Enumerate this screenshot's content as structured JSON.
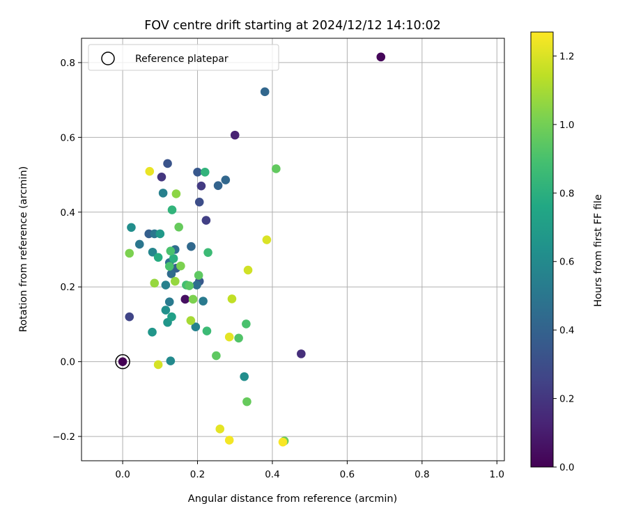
{
  "chart_data": {
    "type": "scatter",
    "title": "FOV centre drift starting at 2024/12/12 14:10:02",
    "xlabel": "Angular distance from reference (arcmin)",
    "ylabel": "Rotation from reference (arcmin)",
    "xlim": [
      -0.11,
      1.02
    ],
    "ylim": [
      -0.265,
      0.865
    ],
    "xticks": [
      0.0,
      0.2,
      0.4,
      0.6,
      0.8,
      1.0
    ],
    "xtick_labels": [
      "0.0",
      "0.2",
      "0.4",
      "0.6",
      "0.8",
      "1.0"
    ],
    "yticks": [
      -0.2,
      0.0,
      0.2,
      0.4,
      0.6,
      0.8
    ],
    "ytick_labels": [
      "−0.2",
      "0.0",
      "0.2",
      "0.4",
      "0.6",
      "0.8"
    ],
    "grid": true,
    "legend": {
      "label": "Reference platepar",
      "position": "top-left"
    },
    "reference_point": {
      "x": 0.0,
      "y": 0.0
    },
    "colorbar": {
      "label": "Hours from first FF file",
      "colormap": "viridis",
      "range": [
        0.0,
        1.27
      ],
      "ticks": [
        0.0,
        0.2,
        0.4,
        0.6,
        0.8,
        1.0,
        1.2
      ],
      "tick_labels": [
        "0.0",
        "0.2",
        "0.4",
        "0.6",
        "0.8",
        "1.0",
        "1.2"
      ]
    },
    "points": [
      {
        "x": 0.0,
        "y": 0.0,
        "c": 0.0
      },
      {
        "x": 0.69,
        "y": 0.815,
        "c": 0.02
      },
      {
        "x": 0.167,
        "y": 0.167,
        "c": 0.05
      },
      {
        "x": 0.3,
        "y": 0.606,
        "c": 0.12
      },
      {
        "x": 0.477,
        "y": 0.021,
        "c": 0.17
      },
      {
        "x": 0.104,
        "y": 0.494,
        "c": 0.2
      },
      {
        "x": 0.21,
        "y": 0.47,
        "c": 0.22
      },
      {
        "x": 0.223,
        "y": 0.378,
        "c": 0.24
      },
      {
        "x": 0.018,
        "y": 0.12,
        "c": 0.26
      },
      {
        "x": 0.205,
        "y": 0.427,
        "c": 0.3
      },
      {
        "x": 0.12,
        "y": 0.53,
        "c": 0.33
      },
      {
        "x": 0.2,
        "y": 0.507,
        "c": 0.35
      },
      {
        "x": 0.205,
        "y": 0.215,
        "c": 0.35
      },
      {
        "x": 0.07,
        "y": 0.342,
        "c": 0.38
      },
      {
        "x": 0.143,
        "y": 0.25,
        "c": 0.38
      },
      {
        "x": 0.255,
        "y": 0.471,
        "c": 0.4
      },
      {
        "x": 0.275,
        "y": 0.486,
        "c": 0.42
      },
      {
        "x": 0.38,
        "y": 0.722,
        "c": 0.42
      },
      {
        "x": 0.183,
        "y": 0.308,
        "c": 0.43
      },
      {
        "x": 0.13,
        "y": 0.235,
        "c": 0.44
      },
      {
        "x": 0.14,
        "y": 0.3,
        "c": 0.45
      },
      {
        "x": 0.125,
        "y": 0.265,
        "c": 0.46
      },
      {
        "x": 0.198,
        "y": 0.205,
        "c": 0.46
      },
      {
        "x": 0.045,
        "y": 0.314,
        "c": 0.5
      },
      {
        "x": 0.085,
        "y": 0.342,
        "c": 0.5
      },
      {
        "x": 0.125,
        "y": 0.16,
        "c": 0.52
      },
      {
        "x": 0.215,
        "y": 0.162,
        "c": 0.52
      },
      {
        "x": 0.108,
        "y": 0.451,
        "c": 0.55
      },
      {
        "x": 0.115,
        "y": 0.205,
        "c": 0.55
      },
      {
        "x": 0.195,
        "y": 0.093,
        "c": 0.56
      },
      {
        "x": 0.08,
        "y": 0.293,
        "c": 0.58
      },
      {
        "x": 0.128,
        "y": 0.002,
        "c": 0.6
      },
      {
        "x": 0.023,
        "y": 0.359,
        "c": 0.62
      },
      {
        "x": 0.325,
        "y": -0.04,
        "c": 0.62
      },
      {
        "x": 0.115,
        "y": 0.138,
        "c": 0.63
      },
      {
        "x": 0.12,
        "y": 0.105,
        "c": 0.66
      },
      {
        "x": 0.079,
        "y": 0.079,
        "c": 0.66
      },
      {
        "x": 0.1,
        "y": 0.342,
        "c": 0.68
      },
      {
        "x": 0.131,
        "y": 0.12,
        "c": 0.72
      },
      {
        "x": 0.095,
        "y": 0.279,
        "c": 0.78
      },
      {
        "x": 0.136,
        "y": 0.276,
        "c": 0.8
      },
      {
        "x": 0.132,
        "y": 0.406,
        "c": 0.82
      },
      {
        "x": 0.22,
        "y": 0.507,
        "c": 0.82
      },
      {
        "x": 0.225,
        "y": 0.082,
        "c": 0.86
      },
      {
        "x": 0.228,
        "y": 0.292,
        "c": 0.86
      },
      {
        "x": 0.17,
        "y": 0.205,
        "c": 0.88
      },
      {
        "x": 0.125,
        "y": 0.255,
        "c": 0.9
      },
      {
        "x": 0.128,
        "y": 0.296,
        "c": 0.9
      },
      {
        "x": 0.33,
        "y": 0.101,
        "c": 0.9
      },
      {
        "x": 0.31,
        "y": 0.063,
        "c": 0.92
      },
      {
        "x": 0.178,
        "y": 0.203,
        "c": 0.94
      },
      {
        "x": 0.203,
        "y": 0.231,
        "c": 0.95
      },
      {
        "x": 0.25,
        "y": 0.016,
        "c": 0.95
      },
      {
        "x": 0.41,
        "y": 0.516,
        "c": 0.96
      },
      {
        "x": 0.15,
        "y": 0.36,
        "c": 0.97
      },
      {
        "x": 0.332,
        "y": -0.107,
        "c": 0.97
      },
      {
        "x": 0.432,
        "y": -0.212,
        "c": 0.98
      },
      {
        "x": 0.018,
        "y": 0.29,
        "c": 1.02
      },
      {
        "x": 0.155,
        "y": 0.256,
        "c": 1.02
      },
      {
        "x": 0.188,
        "y": 0.167,
        "c": 1.02
      },
      {
        "x": 0.143,
        "y": 0.449,
        "c": 1.05
      },
      {
        "x": 0.085,
        "y": 0.21,
        "c": 1.07
      },
      {
        "x": 0.14,
        "y": 0.215,
        "c": 1.07
      },
      {
        "x": 0.182,
        "y": 0.11,
        "c": 1.1
      },
      {
        "x": 0.292,
        "y": 0.168,
        "c": 1.15
      },
      {
        "x": 0.335,
        "y": 0.245,
        "c": 1.18
      },
      {
        "x": 0.095,
        "y": -0.008,
        "c": 1.19
      },
      {
        "x": 0.385,
        "y": 0.326,
        "c": 1.2
      },
      {
        "x": 0.26,
        "y": -0.18,
        "c": 1.22
      },
      {
        "x": 0.285,
        "y": 0.066,
        "c": 1.22
      },
      {
        "x": 0.072,
        "y": 0.509,
        "c": 1.23
      },
      {
        "x": 0.285,
        "y": -0.21,
        "c": 1.25
      },
      {
        "x": 0.428,
        "y": -0.215,
        "c": 1.26
      }
    ]
  }
}
